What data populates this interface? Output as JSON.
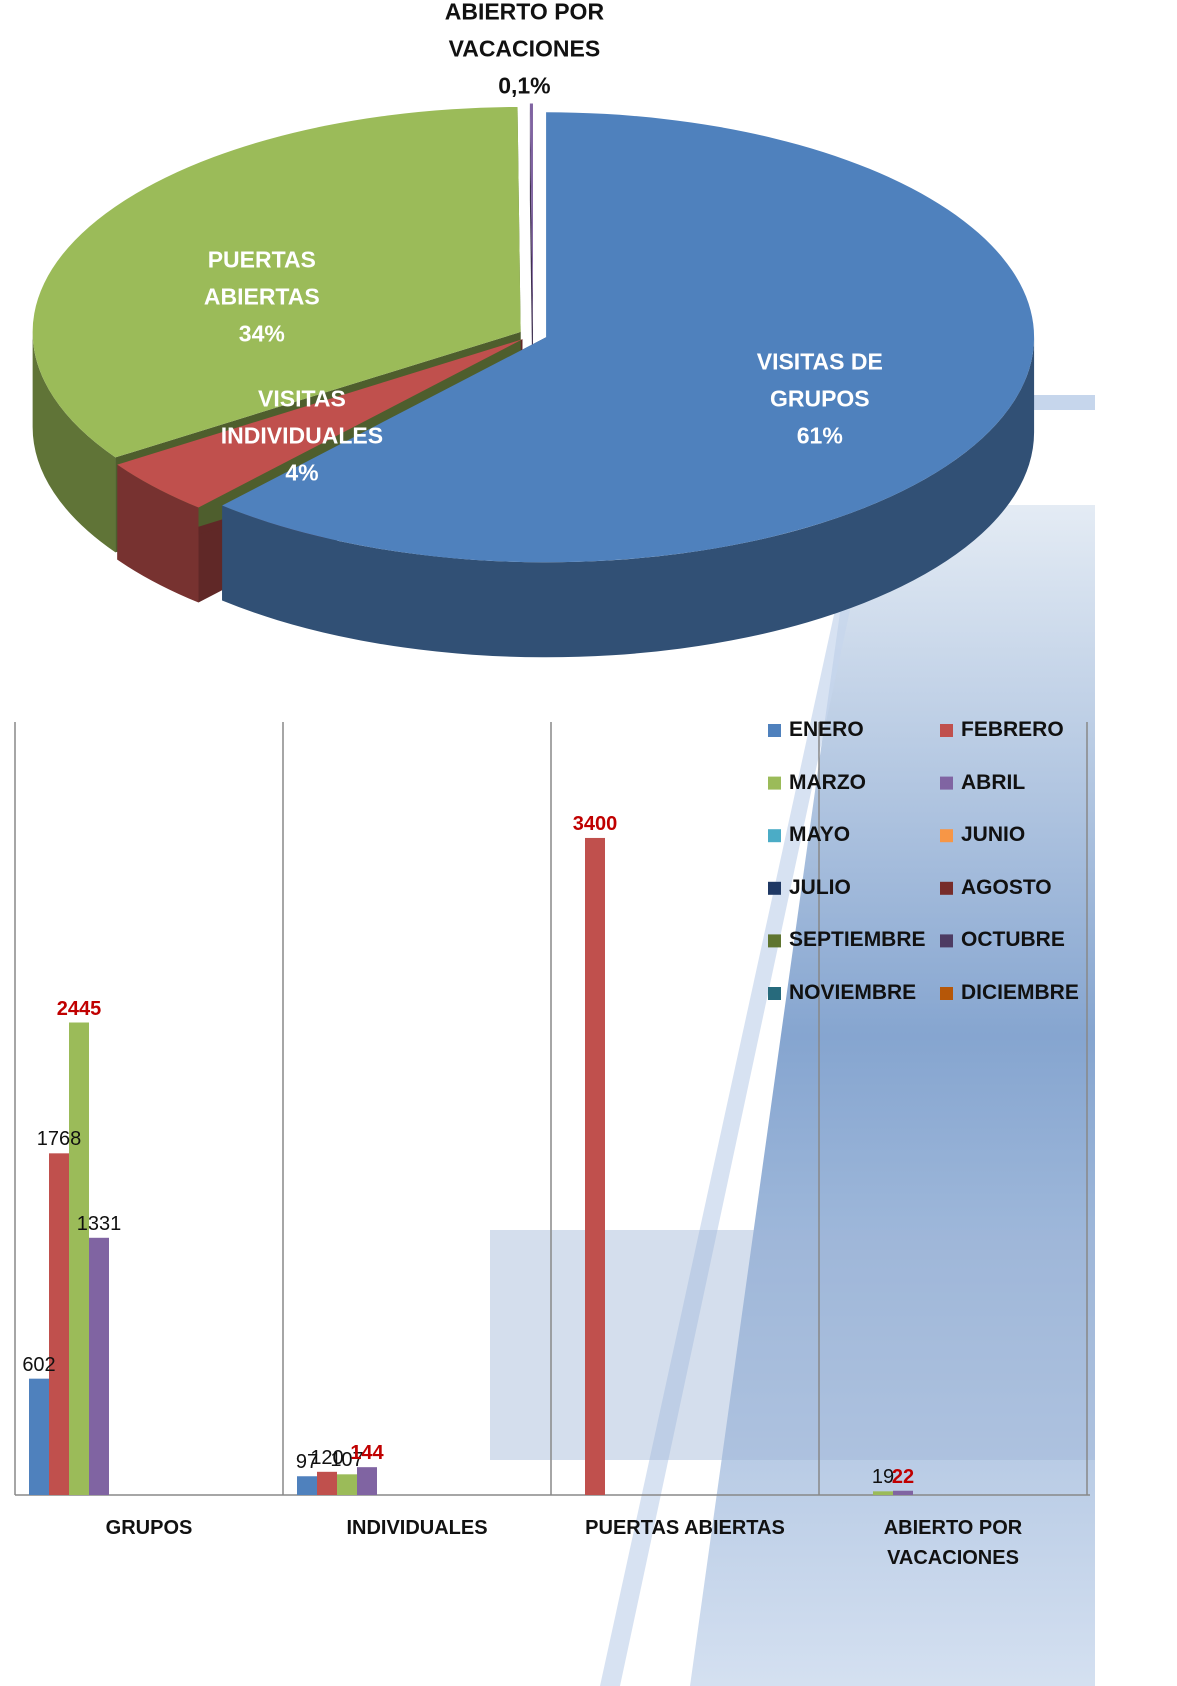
{
  "chart_data": [
    {
      "type": "pie",
      "categories": [
        "VISITAS DE GRUPOS",
        "VISITAS INDIVIDUALES",
        "PUERTAS ABIERTAS",
        "ABIERTO POR VACACIONES"
      ],
      "values": [
        61,
        4,
        34,
        0.1
      ],
      "value_labels": [
        "61%",
        "4%",
        "34%",
        "0,1%"
      ],
      "colors": [
        "#4f81bd",
        "#c0504d",
        "#9bbb59",
        "#8064a2"
      ]
    },
    {
      "type": "bar",
      "categories": [
        "GRUPOS",
        "INDIVIDUALES",
        "PUERTAS ABIERTAS",
        "ABIERTO POR VACACIONES"
      ],
      "ylim": [
        0,
        4000
      ],
      "highlight_color": "#c00000",
      "series": [
        {
          "name": "ENERO",
          "color": "#4f81bd",
          "values": [
            602,
            97,
            null,
            null
          ]
        },
        {
          "name": "FEBRERO",
          "color": "#c0504d",
          "values": [
            1768,
            120,
            3400,
            null
          ]
        },
        {
          "name": "MARZO",
          "color": "#9bbb59",
          "values": [
            2445,
            107,
            null,
            19
          ]
        },
        {
          "name": "ABRIL",
          "color": "#8064a2",
          "values": [
            1331,
            144,
            null,
            22
          ]
        },
        {
          "name": "MAYO",
          "color": "#4bacc6",
          "values": [
            null,
            null,
            null,
            null
          ]
        },
        {
          "name": "JUNIO",
          "color": "#f79646",
          "values": [
            null,
            null,
            null,
            null
          ]
        },
        {
          "name": "JULIO",
          "color": "#1f3864",
          "values": [
            null,
            null,
            null,
            null
          ]
        },
        {
          "name": "AGOSTO",
          "color": "#772c2a",
          "values": [
            null,
            null,
            null,
            null
          ]
        },
        {
          "name": "SEPTIEMBRE",
          "color": "#5f7530",
          "values": [
            null,
            null,
            null,
            null
          ]
        },
        {
          "name": "OCTUBRE",
          "color": "#4d3b62",
          "values": [
            null,
            null,
            null,
            null
          ]
        },
        {
          "name": "NOVIEMBRE",
          "color": "#276a7c",
          "values": [
            null,
            null,
            null,
            null
          ]
        },
        {
          "name": "DICIEMBRE",
          "color": "#b65708",
          "values": [
            null,
            null,
            null,
            null
          ]
        }
      ]
    }
  ]
}
